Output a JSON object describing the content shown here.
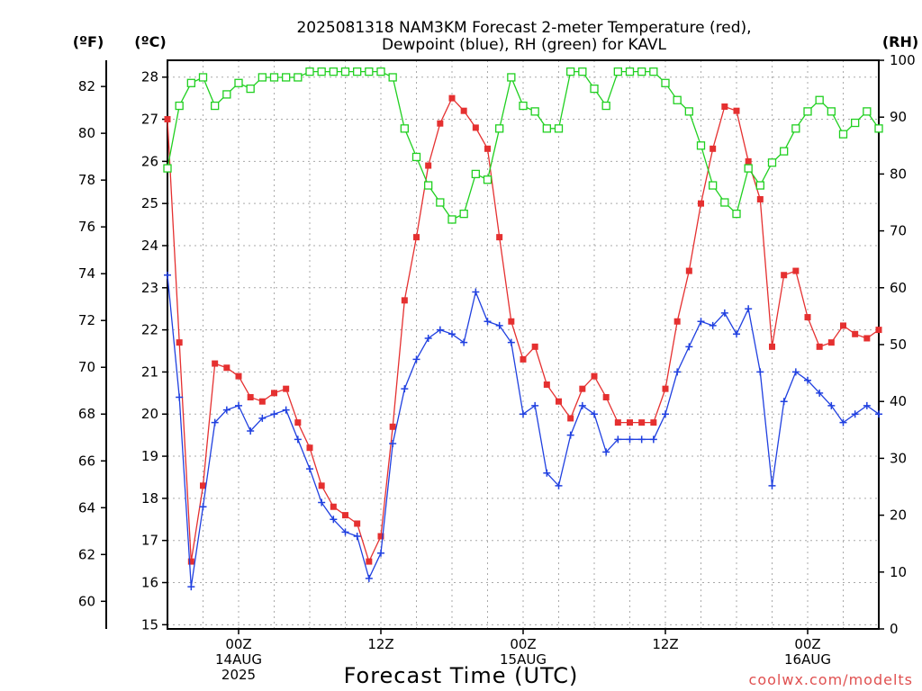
{
  "chart_data": {
    "type": "line",
    "title_line1": "2025081318 NAM3KM Forecast 2-meter Temperature (red),",
    "title_line2": "Dewpoint (blue), RH (green) for KAVL",
    "xlabel": "Forecast Time (UTC)",
    "credit": "coolwx.com/modelts",
    "units": {
      "fahrenheit": "(ºF)",
      "celsius": "(ºC)",
      "rh": "(RH)"
    },
    "x": {
      "start_hour": 18,
      "step_hours": 1,
      "count": 61,
      "ticks": [
        {
          "hour_offset": 6,
          "lines": [
            "00Z",
            "14AUG",
            "2025"
          ]
        },
        {
          "hour_offset": 18,
          "lines": [
            "12Z"
          ]
        },
        {
          "hour_offset": 30,
          "lines": [
            "00Z",
            "15AUG"
          ]
        },
        {
          "hour_offset": 42,
          "lines": [
            "12Z"
          ]
        },
        {
          "hour_offset": 54,
          "lines": [
            "00Z",
            "16AUG"
          ]
        }
      ],
      "grid_every_hours": 3
    },
    "y_celsius": {
      "min": 14.9,
      "max": 28.4,
      "ticks": [
        "15",
        "16",
        "17",
        "18",
        "19",
        "20",
        "21",
        "22",
        "23",
        "24",
        "25",
        "26",
        "27",
        "28"
      ]
    },
    "y_fahrenheit": {
      "ticks": [
        "60",
        "62",
        "64",
        "66",
        "68",
        "70",
        "72",
        "74",
        "76",
        "78",
        "80",
        "82"
      ]
    },
    "y_rh": {
      "min": 0,
      "max": 100,
      "ticks": [
        "0",
        "10",
        "20",
        "30",
        "40",
        "50",
        "60",
        "70",
        "80",
        "90",
        "100"
      ]
    },
    "series": [
      {
        "name": "Temperature",
        "color": "#e53030",
        "marker": "filled-square",
        "axis": "celsius",
        "values": [
          27.0,
          21.7,
          16.5,
          18.3,
          21.2,
          21.1,
          20.9,
          20.4,
          20.3,
          20.5,
          20.6,
          19.8,
          19.2,
          18.3,
          17.8,
          17.6,
          17.4,
          16.5,
          17.1,
          19.7,
          22.7,
          24.2,
          25.9,
          26.9,
          27.5,
          27.2,
          26.8,
          26.3,
          24.2,
          22.2,
          21.3,
          21.6,
          20.7,
          20.3,
          19.9,
          20.6,
          20.9,
          20.4,
          19.8,
          19.8,
          19.8,
          19.8,
          20.6,
          22.2,
          23.4,
          25.0,
          26.3,
          27.3,
          27.2,
          26.0,
          25.1,
          21.6,
          23.3,
          23.4,
          22.3,
          21.6,
          21.7,
          22.1,
          21.9,
          21.8,
          22.0
        ]
      },
      {
        "name": "Dewpoint",
        "color": "#2040e0",
        "marker": "plus",
        "axis": "celsius",
        "values": [
          23.3,
          20.4,
          15.9,
          17.8,
          19.8,
          20.1,
          20.2,
          19.6,
          19.9,
          20.0,
          20.1,
          19.4,
          18.7,
          17.9,
          17.5,
          17.2,
          17.1,
          16.1,
          16.7,
          19.3,
          20.6,
          21.3,
          21.8,
          22.0,
          21.9,
          21.7,
          22.9,
          22.2,
          22.1,
          21.7,
          20.0,
          20.2,
          18.6,
          18.3,
          19.5,
          20.2,
          20.0,
          19.1,
          19.4,
          19.4,
          19.4,
          19.4,
          20.0,
          21.0,
          21.6,
          22.2,
          22.1,
          22.4,
          21.9,
          22.5,
          21.0,
          18.3,
          20.3,
          21.0,
          20.8,
          20.5,
          20.2,
          19.8,
          20.0,
          20.2,
          20.0
        ]
      },
      {
        "name": "RH",
        "color": "#20d020",
        "marker": "open-square",
        "axis": "rh",
        "values": [
          81,
          92,
          96,
          97,
          92,
          94,
          96,
          95,
          97,
          97,
          97,
          97,
          98,
          98,
          98,
          98,
          98,
          98,
          98,
          97,
          88,
          83,
          78,
          75,
          72,
          73,
          80,
          79,
          88,
          97,
          92,
          91,
          88,
          88,
          98,
          98,
          95,
          92,
          98,
          98,
          98,
          98,
          96,
          93,
          91,
          85,
          78,
          75,
          73,
          81,
          78,
          82,
          84,
          88,
          91,
          93,
          91,
          87,
          89,
          91,
          88
        ]
      }
    ],
    "grid": true,
    "legend": "none"
  }
}
